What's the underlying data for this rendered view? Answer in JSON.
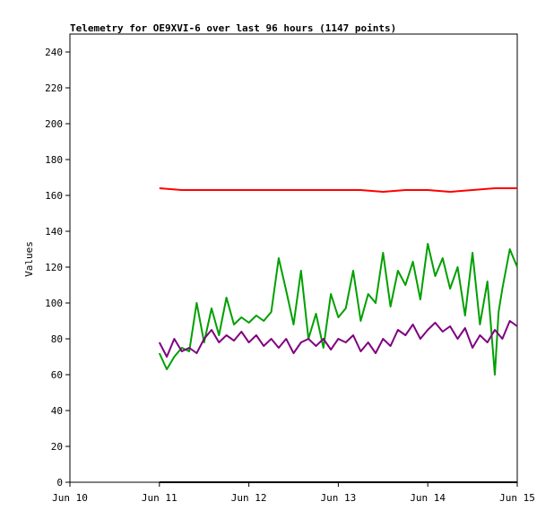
{
  "chart_data": {
    "type": "line",
    "title": "Telemetry for OE9XVI-6 over last 96 hours (1147 points)",
    "xlabel": "",
    "ylabel": "Values",
    "xlim": [
      "Jun 10",
      "Jun 15"
    ],
    "ylim": [
      0,
      250
    ],
    "x_ticks": [
      "Jun 10",
      "Jun 11",
      "Jun 12",
      "Jun 13",
      "Jun 14",
      "Jun 15"
    ],
    "y_ticks": [
      0,
      20,
      40,
      60,
      80,
      100,
      120,
      140,
      160,
      180,
      200,
      220,
      240
    ],
    "grid": false,
    "legend": "none",
    "series": [
      {
        "color": "#ff0000",
        "x": [
          "Jun 11 00:00",
          "Jun 11 06:00",
          "Jun 11 12:00",
          "Jun 11 18:00",
          "Jun 12 00:00",
          "Jun 12 06:00",
          "Jun 12 12:00",
          "Jun 12 18:00",
          "Jun 13 00:00",
          "Jun 13 06:00",
          "Jun 13 12:00",
          "Jun 13 18:00",
          "Jun 14 00:00",
          "Jun 14 06:00",
          "Jun 14 12:00",
          "Jun 14 18:00",
          "Jun 15 00:00"
        ],
        "values": [
          164,
          163,
          163,
          163,
          163,
          163,
          163,
          163,
          163,
          163,
          162,
          163,
          163,
          162,
          163,
          164,
          164
        ]
      },
      {
        "color": "#00a000",
        "x": [
          "Jun 11 00:00",
          "Jun 11 02:00",
          "Jun 11 04:00",
          "Jun 11 06:00",
          "Jun 11 08:00",
          "Jun 11 10:00",
          "Jun 11 12:00",
          "Jun 11 14:00",
          "Jun 11 16:00",
          "Jun 11 18:00",
          "Jun 11 20:00",
          "Jun 11 22:00",
          "Jun 12 00:00",
          "Jun 12 02:00",
          "Jun 12 04:00",
          "Jun 12 06:00",
          "Jun 12 08:00",
          "Jun 12 10:00",
          "Jun 12 12:00",
          "Jun 12 14:00",
          "Jun 12 16:00",
          "Jun 12 18:00",
          "Jun 12 20:00",
          "Jun 12 22:00",
          "Jun 13 00:00",
          "Jun 13 02:00",
          "Jun 13 04:00",
          "Jun 13 06:00",
          "Jun 13 08:00",
          "Jun 13 10:00",
          "Jun 13 12:00",
          "Jun 13 14:00",
          "Jun 13 16:00",
          "Jun 13 18:00",
          "Jun 13 20:00",
          "Jun 13 22:00",
          "Jun 14 00:00",
          "Jun 14 02:00",
          "Jun 14 04:00",
          "Jun 14 06:00",
          "Jun 14 08:00",
          "Jun 14 10:00",
          "Jun 14 12:00",
          "Jun 14 14:00",
          "Jun 14 16:00",
          "Jun 14 18:00",
          "Jun 14 19:00",
          "Jun 14 20:00",
          "Jun 14 22:00",
          "Jun 15 00:00"
        ],
        "values": [
          72,
          63,
          70,
          75,
          73,
          100,
          78,
          97,
          82,
          103,
          88,
          92,
          89,
          93,
          90,
          95,
          125,
          107,
          88,
          118,
          80,
          94,
          75,
          105,
          92,
          97,
          118,
          90,
          105,
          100,
          128,
          98,
          118,
          110,
          123,
          102,
          133,
          115,
          125,
          108,
          120,
          93,
          128,
          88,
          112,
          60,
          95,
          108,
          130,
          120
        ]
      },
      {
        "color": "#800080",
        "x": [
          "Jun 11 00:00",
          "Jun 11 02:00",
          "Jun 11 04:00",
          "Jun 11 06:00",
          "Jun 11 08:00",
          "Jun 11 10:00",
          "Jun 11 12:00",
          "Jun 11 14:00",
          "Jun 11 16:00",
          "Jun 11 18:00",
          "Jun 11 20:00",
          "Jun 11 22:00",
          "Jun 12 00:00",
          "Jun 12 02:00",
          "Jun 12 04:00",
          "Jun 12 06:00",
          "Jun 12 08:00",
          "Jun 12 10:00",
          "Jun 12 12:00",
          "Jun 12 14:00",
          "Jun 12 16:00",
          "Jun 12 18:00",
          "Jun 12 20:00",
          "Jun 12 22:00",
          "Jun 13 00:00",
          "Jun 13 02:00",
          "Jun 13 04:00",
          "Jun 13 06:00",
          "Jun 13 08:00",
          "Jun 13 10:00",
          "Jun 13 12:00",
          "Jun 13 14:00",
          "Jun 13 16:00",
          "Jun 13 18:00",
          "Jun 13 20:00",
          "Jun 13 22:00",
          "Jun 14 00:00",
          "Jun 14 02:00",
          "Jun 14 04:00",
          "Jun 14 06:00",
          "Jun 14 08:00",
          "Jun 14 10:00",
          "Jun 14 12:00",
          "Jun 14 14:00",
          "Jun 14 16:00",
          "Jun 14 18:00",
          "Jun 14 20:00",
          "Jun 14 22:00",
          "Jun 15 00:00"
        ],
        "values": [
          78,
          70,
          80,
          73,
          75,
          72,
          80,
          85,
          78,
          82,
          79,
          84,
          78,
          82,
          76,
          80,
          75,
          80,
          72,
          78,
          80,
          76,
          80,
          74,
          80,
          78,
          82,
          73,
          78,
          72,
          80,
          76,
          85,
          82,
          88,
          80,
          85,
          89,
          84,
          87,
          80,
          86,
          75,
          82,
          78,
          85,
          80,
          90,
          87
        ]
      },
      {
        "color": "#000000",
        "x": [
          "Jun 11 00:00",
          "Jun 15 00:00"
        ],
        "values": [
          0,
          0
        ]
      }
    ]
  }
}
